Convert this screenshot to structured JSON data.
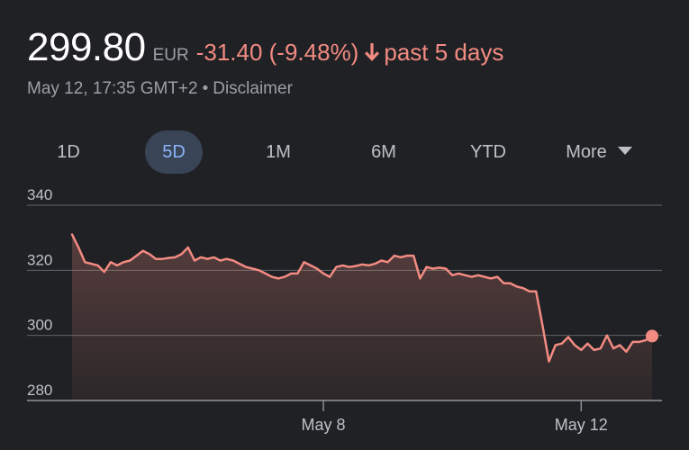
{
  "quote": {
    "price": "299.80",
    "currency": "EUR",
    "change": "-31.40 (-9.48%)",
    "period": "past 5 days",
    "timestamp": "May 12, 17:35 GMT+2",
    "separator": "•",
    "disclaimer": "Disclaimer"
  },
  "colors": {
    "accent": "#f28b82",
    "active_tab": "#8ab4f8",
    "background": "#202124"
  },
  "tabs": [
    {
      "label": "1D",
      "active": false
    },
    {
      "label": "5D",
      "active": true
    },
    {
      "label": "1M",
      "active": false
    },
    {
      "label": "6M",
      "active": false
    },
    {
      "label": "YTD",
      "active": false
    },
    {
      "label": "More",
      "active": false
    }
  ],
  "chart_data": {
    "type": "area",
    "title": "",
    "xlabel": "",
    "ylabel": "",
    "ylim": [
      280,
      340
    ],
    "yticks": [
      340,
      320,
      300,
      280
    ],
    "grid": true,
    "x_ticks": [
      {
        "label": "May 8",
        "index": 39
      },
      {
        "label": "May 12",
        "index": 79
      }
    ],
    "series": [
      {
        "values": [
          331,
          327,
          322.5,
          322,
          321.5,
          319.5,
          322.5,
          321.5,
          322.5,
          323,
          324.5,
          326,
          325,
          323.5,
          323.5,
          323.8,
          324,
          325,
          327,
          323,
          324,
          323.5,
          324,
          323,
          323.5,
          323,
          322,
          321,
          320.5,
          320,
          319,
          318,
          317.5,
          318,
          319,
          319,
          322.5,
          321.5,
          320.5,
          319,
          318,
          321,
          321.5,
          321,
          321.3,
          321.8,
          321.5,
          322,
          323,
          322.5,
          324.5,
          324,
          324.5,
          324.5,
          317.5,
          321,
          320.5,
          320.8,
          320.5,
          318.5,
          319,
          318.5,
          318,
          318.5,
          318,
          317.5,
          318,
          316,
          316,
          315,
          314.5,
          313.5,
          313.5,
          303,
          292,
          297,
          297.5,
          299.5,
          297,
          295.5,
          297.5,
          295.5,
          296,
          300,
          296,
          297,
          295,
          298,
          298,
          298.5,
          299.8
        ]
      }
    ]
  }
}
